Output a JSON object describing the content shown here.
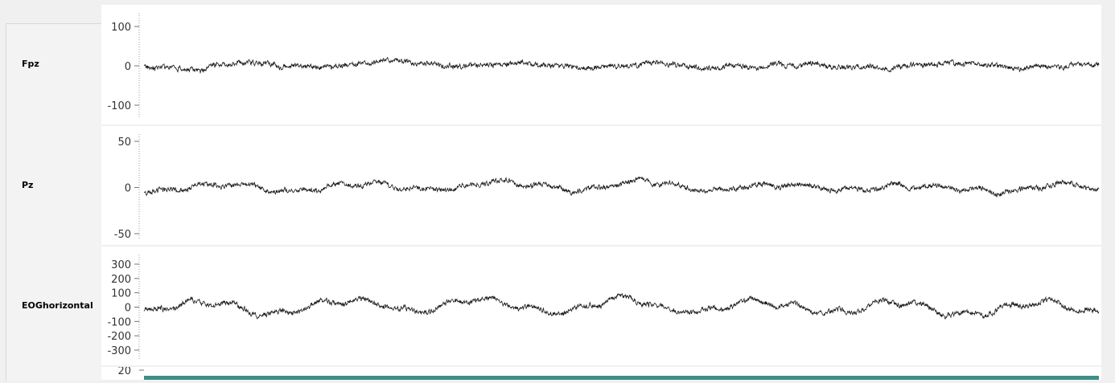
{
  "channels": [
    {
      "id": "fpz",
      "label": "Fpz",
      "ticks": [
        100,
        0,
        -100
      ],
      "ylim": [
        -100,
        100
      ],
      "amplitude": 6,
      "slow": 4
    },
    {
      "id": "pz",
      "label": "Pz",
      "ticks": [
        50,
        0,
        -50
      ],
      "ylim": [
        -50,
        50
      ],
      "amplitude": 6,
      "slow": 8
    },
    {
      "id": "eog",
      "label": "EOGhorizontal",
      "ticks": [
        300,
        200,
        100,
        0,
        -100,
        -200,
        -300
      ],
      "ylim": [
        -300,
        300
      ],
      "amplitude": 6,
      "slow": 12
    }
  ],
  "spectrogram": {
    "label": "",
    "tick": 20
  },
  "colors": {
    "trace": "#1a1a1a",
    "spectrogram": "#3f8f86",
    "panel_bg": "#ffffff",
    "window_bg": "#f0f0f0"
  }
}
